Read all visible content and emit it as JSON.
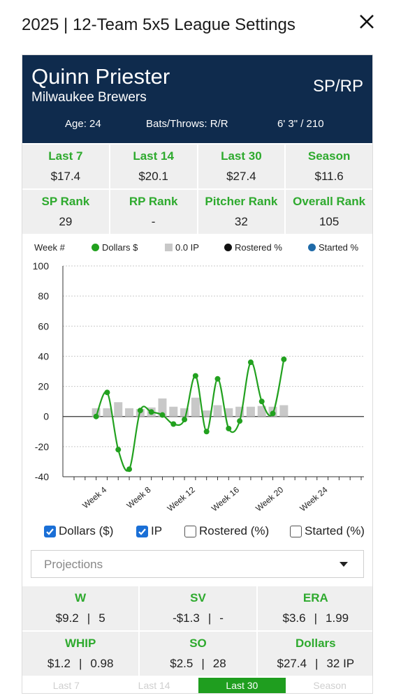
{
  "header": {
    "title": "2025 | 12-Team 5x5 League Settings"
  },
  "player": {
    "name": "Quinn Priester",
    "team": "Milwaukee Brewers",
    "position": "SP/RP",
    "age": "Age: 24",
    "bats_throws": "Bats/Throws: R/R",
    "height_weight": "6' 3\" / 210"
  },
  "periods": [
    {
      "label": "Last 7",
      "value": "$17.4"
    },
    {
      "label": "Last 14",
      "value": "$20.1"
    },
    {
      "label": "Last 30",
      "value": "$27.4"
    },
    {
      "label": "Season",
      "value": "$11.6"
    }
  ],
  "ranks": [
    {
      "label": "SP Rank",
      "value": "29"
    },
    {
      "label": "RP Rank",
      "value": "-"
    },
    {
      "label": "Pitcher Rank",
      "value": "32"
    },
    {
      "label": "Overall Rank",
      "value": "105"
    }
  ],
  "legend": {
    "week": "Week #",
    "dollars": "Dollars $",
    "ip": "0.0 IP",
    "rostered": "Rostered %",
    "started": "Started %"
  },
  "colors": {
    "accent_green": "#2eaa2e",
    "line_green": "#22a11f",
    "navy": "#0f2b4d",
    "bar_gray": "#c8c8c8",
    "checkbox_blue": "#1a6fd6"
  },
  "chart_data": {
    "type": "line",
    "ylim": [
      -40,
      100
    ],
    "yticks": [
      100,
      80,
      60,
      40,
      20,
      0,
      -20,
      -40
    ],
    "xlim": [
      1,
      27
    ],
    "xtick_labels": [
      {
        "week": 4,
        "label": "Week 4"
      },
      {
        "week": 8,
        "label": "Week 8"
      },
      {
        "week": 12,
        "label": "Week 12"
      },
      {
        "week": 16,
        "label": "Week 16"
      },
      {
        "week": 20,
        "label": "Week 20"
      },
      {
        "week": 24,
        "label": "Week 24"
      }
    ],
    "series": [
      {
        "name": "Dollars $",
        "type": "line",
        "x": [
          3,
          4,
          5,
          6,
          7,
          8,
          9,
          10,
          11,
          12,
          13,
          14,
          15,
          16,
          17,
          18,
          19,
          20
        ],
        "values": [
          0,
          16,
          -22,
          -35,
          4,
          3,
          1,
          -5,
          -2,
          27,
          -10,
          25,
          -8,
          -3,
          36,
          10,
          2,
          38
        ]
      },
      {
        "name": "0.0 IP",
        "type": "bar",
        "x": [
          3,
          4,
          5,
          6,
          7,
          8,
          9,
          10,
          11,
          12,
          13,
          14,
          15,
          16,
          17,
          18,
          19,
          20
        ],
        "values": [
          5.5,
          5.5,
          9.5,
          5.5,
          5,
          6,
          12,
          6.5,
          5.5,
          12.5,
          4,
          7.5,
          5.5,
          6.5,
          6.5,
          7,
          6.5,
          7.5
        ]
      }
    ]
  },
  "toggles": [
    {
      "label": "Dollars ($)",
      "checked": true
    },
    {
      "label": "IP",
      "checked": true
    },
    {
      "label": "Rostered (%)",
      "checked": false
    },
    {
      "label": "Started (%)",
      "checked": false
    }
  ],
  "projection_select": {
    "value": "Projections"
  },
  "categories": [
    {
      "label": "W",
      "value": "$9.2",
      "stat": "5"
    },
    {
      "label": "SV",
      "value": "-$1.3",
      "stat": "-"
    },
    {
      "label": "ERA",
      "value": "$3.6",
      "stat": "1.99"
    },
    {
      "label": "WHIP",
      "value": "$1.2",
      "stat": "0.98"
    },
    {
      "label": "SO",
      "value": "$2.5",
      "stat": "28"
    },
    {
      "label": "Dollars",
      "value": "$27.4",
      "stat": "32 IP"
    }
  ],
  "bottom_tabs": [
    {
      "label": "Last 7",
      "active": false
    },
    {
      "label": "Last 14",
      "active": false
    },
    {
      "label": "Last 30",
      "active": true
    },
    {
      "label": "Season",
      "active": false
    }
  ]
}
